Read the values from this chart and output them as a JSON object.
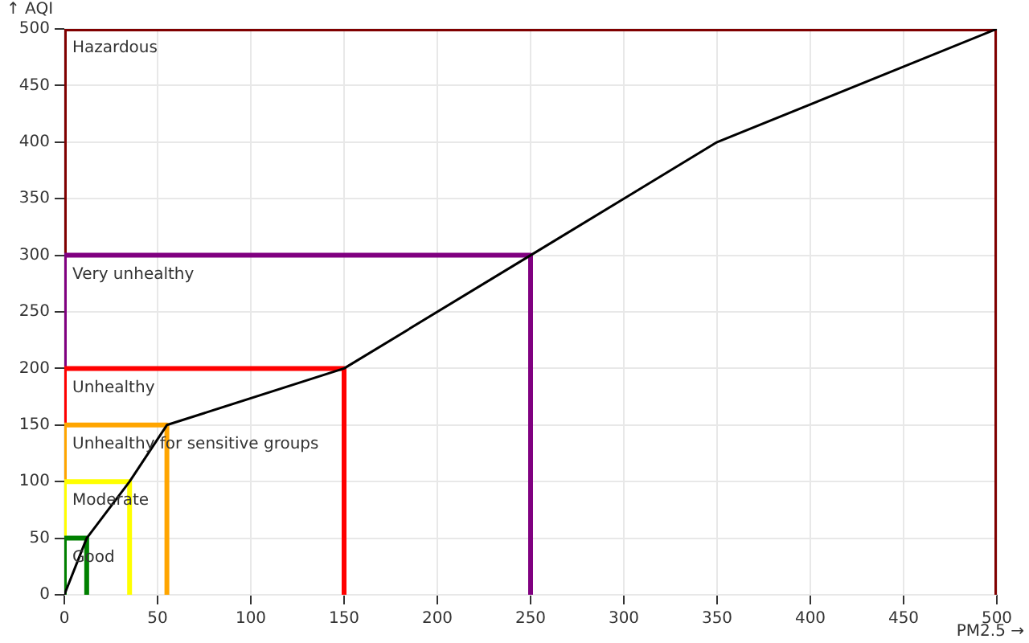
{
  "chart_data": {
    "type": "line",
    "xlabel": "PM2.5 →",
    "ylabel": "↑ AQI",
    "xlim": [
      0,
      500
    ],
    "ylim": [
      0,
      500
    ],
    "xticks": [
      0,
      50,
      100,
      150,
      200,
      250,
      300,
      350,
      400,
      450,
      500
    ],
    "yticks": [
      0,
      50,
      100,
      150,
      200,
      250,
      300,
      350,
      400,
      450,
      500
    ],
    "grid": true,
    "legend": false,
    "marker": "none",
    "series": [
      {
        "color": "#000000",
        "x": [
          0,
          12,
          35,
          55,
          150,
          250,
          350,
          500
        ],
        "values": [
          0,
          50,
          100,
          150,
          200,
          300,
          400,
          500
        ]
      },
      {
        "name": "Good",
        "color": "#008000",
        "x": [
          0,
          0,
          12,
          12
        ],
        "values": [
          0,
          50,
          50,
          0
        ]
      },
      {
        "name": "Moderate",
        "color": "#ffff00",
        "x": [
          0,
          0,
          35,
          35
        ],
        "values": [
          0,
          100,
          100,
          0
        ]
      },
      {
        "name": "Unhealthy for sensitive groups",
        "color": "#ffa500",
        "x": [
          0,
          0,
          55,
          55
        ],
        "values": [
          0,
          150,
          150,
          0
        ]
      },
      {
        "name": "Unhealthy",
        "color": "#ff0000",
        "x": [
          0,
          0,
          150,
          150
        ],
        "values": [
          0,
          200,
          200,
          0
        ]
      },
      {
        "name": "Very unhealthy",
        "color": "#800080",
        "x": [
          0,
          0,
          250,
          250
        ],
        "values": [
          0,
          300,
          300,
          0
        ]
      },
      {
        "name": "Hazardous",
        "color": "#800000",
        "x": [
          0,
          0,
          500,
          500
        ],
        "values": [
          0,
          500,
          500,
          0
        ]
      }
    ]
  }
}
